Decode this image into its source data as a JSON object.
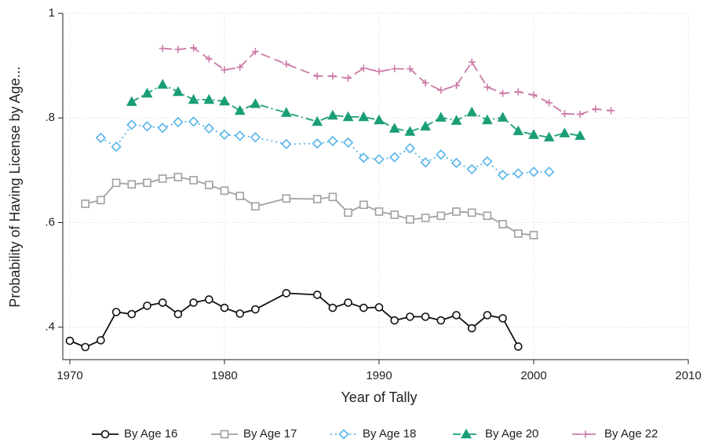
{
  "chart_data": {
    "type": "line",
    "x_label": "Year of Tally",
    "y_label": "Probability of Having License by Age...",
    "xlim": [
      1970,
      2010
    ],
    "xticks": [
      1970,
      1980,
      1990,
      2000,
      2010
    ],
    "ylim": [
      0.338,
      1
    ],
    "yticks": [
      {
        "value": 0.4,
        "label": ".4"
      },
      {
        "value": 0.6,
        "label": ".6"
      },
      {
        "value": 0.8,
        "label": ".8"
      },
      1
    ],
    "grid": true,
    "legend": "bottom",
    "series": [
      {
        "name": "By Age 16",
        "color": "#111111",
        "marker": "circle",
        "dash": "solid",
        "x": [
          1970,
          1971,
          1972,
          1973,
          1974,
          1975,
          1976,
          1977,
          1978,
          1979,
          1980,
          1981,
          1982,
          1984,
          1986,
          1987,
          1988,
          1989,
          1990,
          1991,
          1992,
          1993,
          1994,
          1995,
          1996,
          1997,
          1998,
          1999
        ],
        "values": [
          0.374,
          0.362,
          0.375,
          0.429,
          0.425,
          0.441,
          0.447,
          0.425,
          0.447,
          0.453,
          0.437,
          0.426,
          0.434,
          0.465,
          0.462,
          0.437,
          0.447,
          0.437,
          0.438,
          0.413,
          0.42,
          0.42,
          0.413,
          0.423,
          0.398,
          0.423,
          0.417,
          0.363
        ]
      },
      {
        "name": "By Age 17",
        "color": "#a0a0a0",
        "marker": "square",
        "dash": "solid",
        "x": [
          1971,
          1972,
          1973,
          1974,
          1975,
          1976,
          1977,
          1978,
          1979,
          1980,
          1981,
          1982,
          1984,
          1986,
          1987,
          1988,
          1989,
          1990,
          1991,
          1992,
          1993,
          1994,
          1995,
          1996,
          1997,
          1998,
          1999,
          2000
        ],
        "values": [
          0.636,
          0.643,
          0.676,
          0.673,
          0.676,
          0.684,
          0.687,
          0.681,
          0.672,
          0.661,
          0.651,
          0.631,
          0.646,
          0.645,
          0.649,
          0.619,
          0.634,
          0.621,
          0.615,
          0.606,
          0.609,
          0.613,
          0.621,
          0.619,
          0.613,
          0.597,
          0.579,
          0.576
        ]
      },
      {
        "name": "By Age 18",
        "color": "#56b4e9",
        "marker": "diamond",
        "dash": "dot",
        "x": [
          1972,
          1973,
          1974,
          1975,
          1976,
          1977,
          1978,
          1979,
          1980,
          1981,
          1982,
          1984,
          1986,
          1987,
          1988,
          1989,
          1990,
          1991,
          1992,
          1993,
          1994,
          1995,
          1996,
          1997,
          1998,
          1999,
          2000,
          2001
        ],
        "values": [
          0.762,
          0.745,
          0.787,
          0.784,
          0.781,
          0.792,
          0.793,
          0.78,
          0.768,
          0.766,
          0.763,
          0.75,
          0.751,
          0.756,
          0.753,
          0.724,
          0.721,
          0.725,
          0.742,
          0.715,
          0.73,
          0.714,
          0.702,
          0.717,
          0.691,
          0.694,
          0.697,
          0.697
        ]
      },
      {
        "name": "By Age 20",
        "color": "#1a9e77",
        "marker": "triangle",
        "dash": "dash-dot",
        "x": [
          1974,
          1975,
          1976,
          1977,
          1978,
          1979,
          1980,
          1981,
          1982,
          1984,
          1986,
          1987,
          1988,
          1989,
          1990,
          1991,
          1992,
          1993,
          1994,
          1995,
          1996,
          1997,
          1998,
          1999,
          2000,
          2001,
          2002,
          2003
        ],
        "values": [
          0.831,
          0.847,
          0.864,
          0.85,
          0.835,
          0.835,
          0.832,
          0.814,
          0.827,
          0.81,
          0.793,
          0.805,
          0.802,
          0.802,
          0.796,
          0.78,
          0.774,
          0.784,
          0.801,
          0.795,
          0.811,
          0.796,
          0.801,
          0.775,
          0.768,
          0.763,
          0.771,
          0.766
        ]
      },
      {
        "name": "By Age 22",
        "color": "#cc79a7",
        "marker": "plus",
        "dash": "dash",
        "x": [
          1976,
          1977,
          1978,
          1979,
          1980,
          1981,
          1982,
          1984,
          1986,
          1987,
          1988,
          1989,
          1990,
          1991,
          1992,
          1993,
          1994,
          1995,
          1996,
          1997,
          1998,
          1999,
          2000,
          2001,
          2002,
          2003,
          2004,
          2005
        ],
        "values": [
          0.933,
          0.931,
          0.934,
          0.913,
          0.892,
          0.897,
          0.927,
          0.903,
          0.88,
          0.88,
          0.876,
          0.895,
          0.889,
          0.894,
          0.894,
          0.867,
          0.853,
          0.862,
          0.907,
          0.859,
          0.847,
          0.85,
          0.844,
          0.829,
          0.808,
          0.807,
          0.817,
          0.814
        ]
      }
    ]
  }
}
